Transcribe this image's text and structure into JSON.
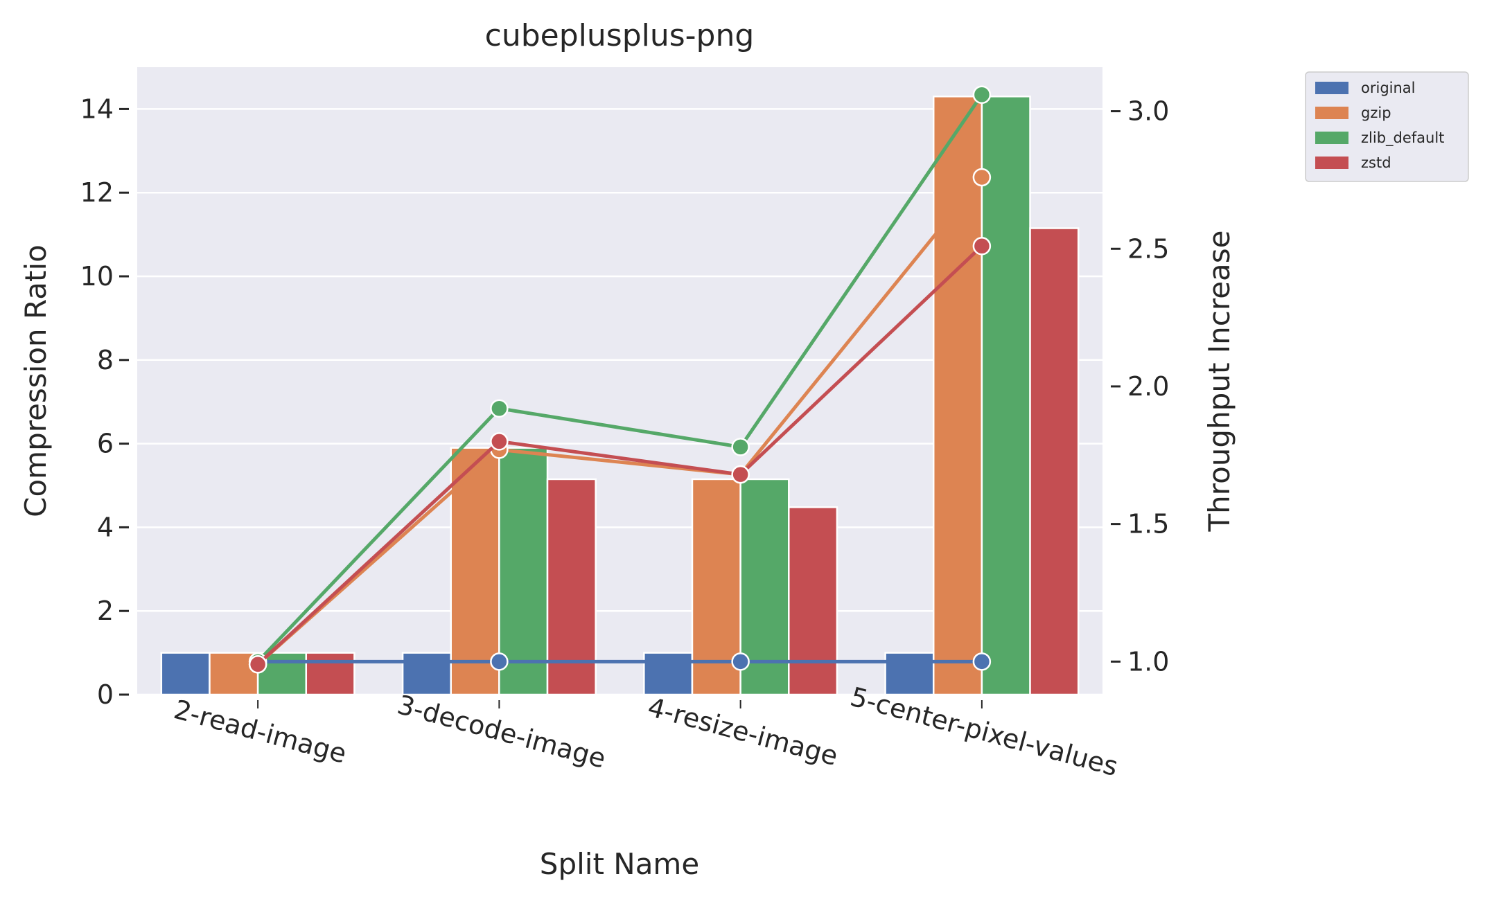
{
  "chart_data": {
    "type": "bar",
    "title": "cubeplusplus-png",
    "xlabel": "Split Name",
    "ylabel": "Compression Ratio",
    "y2label": "Throughput Increase",
    "categories": [
      "2-read-image",
      "3-decode-image",
      "4-resize-image",
      "5-center-pixel-values"
    ],
    "ylim": [
      0,
      15
    ],
    "yticks": [
      0,
      2,
      4,
      6,
      8,
      10,
      12,
      14
    ],
    "y2lim": [
      0.88,
      3.16
    ],
    "y2ticks": [
      "1.0",
      "1.5",
      "2.0",
      "2.5",
      "3.0"
    ],
    "grid": true,
    "legend": "outside-top-right",
    "series": [
      {
        "name": "original",
        "color": "#4c72b0",
        "values": [
          1.0,
          1.0,
          1.0,
          1.0
        ],
        "throughput": [
          1.0,
          1.0,
          1.0,
          1.0
        ]
      },
      {
        "name": "gzip",
        "color": "#dd8452",
        "values": [
          1.0,
          5.9,
          5.15,
          14.3
        ],
        "throughput": [
          0.99,
          1.77,
          1.68,
          2.76
        ]
      },
      {
        "name": "zlib_default",
        "color": "#55a868",
        "values": [
          1.0,
          5.9,
          5.15,
          14.3
        ],
        "throughput": [
          1.0,
          1.92,
          1.78,
          3.06
        ]
      },
      {
        "name": "zstd",
        "color": "#c44e52",
        "values": [
          1.0,
          5.15,
          4.48,
          11.15
        ],
        "throughput": [
          0.99,
          1.8,
          1.68,
          2.51
        ]
      }
    ]
  }
}
